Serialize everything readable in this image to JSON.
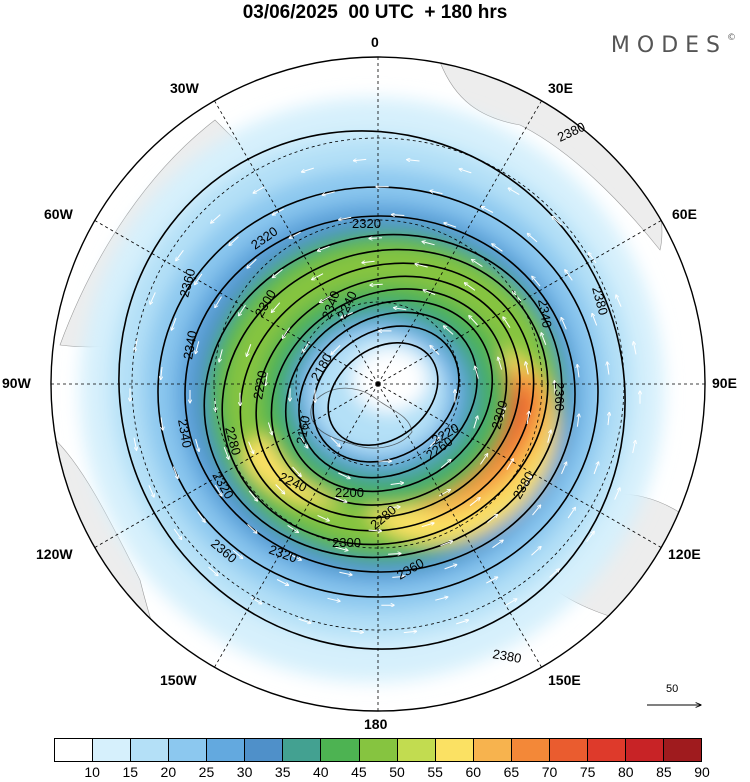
{
  "header": {
    "title": "03/06/2025  00 UTC  + 180 hrs",
    "brand": "MODES",
    "brand_mark": "©"
  },
  "map_labels": {
    "lon_0": "0",
    "lon_30E": "30E",
    "lon_60E": "60E",
    "lon_90E": "90E",
    "lon_120E": "120E",
    "lon_150E": "150E",
    "lon_180": "180",
    "lon_150W": "150W",
    "lon_120W": "120W",
    "lon_90W": "90W",
    "lon_60W": "60W",
    "lon_30W": "30W"
  },
  "contours": {
    "c2380a": "2380",
    "c2380b": "2380",
    "c2380c": "2380",
    "c2380d": "2380",
    "c2360a": "2360",
    "c2360b": "2360",
    "c2360c": "2360",
    "c2360d": "2360",
    "c2340a": "2340",
    "c2340b": "2340",
    "c2340c": "2340",
    "c2340d": "2340",
    "c2320a": "2320",
    "c2320b": "2320",
    "c2320c": "2320",
    "c2320d": "2320",
    "c2300a": "2300",
    "c2300b": "2300",
    "c2300c": "2300",
    "c2280a": "2280",
    "c2280b": "2280",
    "c2260a": "2260",
    "c2240a": "2240",
    "c2240b": "2240",
    "c2220a": "2220",
    "c2220b": "2220",
    "c2200a": "2200",
    "c2180a": "2180",
    "c2160a": "2160"
  },
  "reference_vector": {
    "label": "50"
  },
  "colorbar": {
    "ticks": [
      "10",
      "15",
      "20",
      "25",
      "30",
      "35",
      "40",
      "45",
      "50",
      "55",
      "60",
      "65",
      "70",
      "75",
      "80",
      "85",
      "90"
    ],
    "colors": [
      "#ffffff",
      "#d6f0fc",
      "#b4e0f7",
      "#8cc8ef",
      "#63a9df",
      "#4f90c9",
      "#43a191",
      "#4db352",
      "#86c440",
      "#c2dc50",
      "#fbe163",
      "#f7b34e",
      "#f38838",
      "#ea5c2f",
      "#de3a2b",
      "#c82326",
      "#9f1b1e"
    ]
  },
  "icons": {
    "ref_arrow": "reference-arrow-icon",
    "pole": "pole-marker-icon"
  }
}
